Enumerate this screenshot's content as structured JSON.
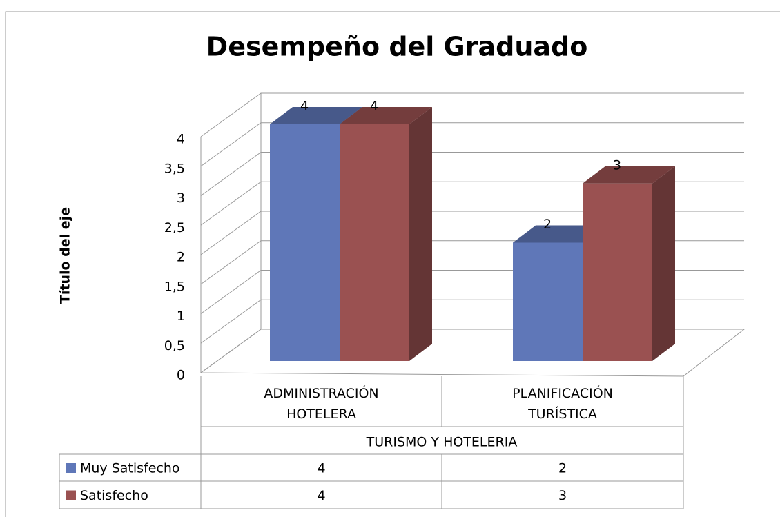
{
  "chart_data": {
    "type": "bar3d",
    "title": "Desempeño del Graduado",
    "y_axis_label": "Título del eje",
    "categories": [
      "ADMINISTRACIÓN HOTELERA",
      "PLANIFICACIÓN TURÍSTICA"
    ],
    "group_label": "TURISMO Y HOTELERIA",
    "series": [
      {
        "name": "Muy Satisfecho",
        "color": "#5f77b8",
        "values": [
          4,
          2
        ]
      },
      {
        "name": "Satisfecho",
        "color": "#9a5151",
        "values": [
          4,
          3
        ]
      }
    ],
    "ylim": [
      0,
      4
    ],
    "yticks": [
      0,
      {
        "value": 0.5,
        "label": "0,5"
      },
      1,
      {
        "value": 1.5,
        "label": "1,5"
      },
      2,
      {
        "value": 2.5,
        "label": "2,5"
      },
      3,
      {
        "value": 3.5,
        "label": "3,5"
      },
      4
    ],
    "grid": true,
    "data_table": true
  }
}
